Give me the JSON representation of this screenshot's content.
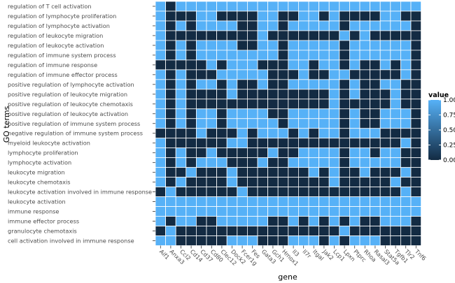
{
  "chart_data": {
    "type": "heatmap",
    "xlabel": "gene",
    "ylabel": "GO terms",
    "legend_title": "value",
    "legend_ticks": [
      "1.00",
      "0.75",
      "0.50",
      "0.25",
      "0.00"
    ],
    "colors": {
      "low": "#132B43",
      "high": "#56B1F7"
    },
    "value_range": [
      0,
      1
    ],
    "genes": [
      "Aif1",
      "Anxa3",
      "Ccl2",
      "Cd14",
      "Cd37",
      "Cd80",
      "Clec12",
      "Dock2",
      "Fcer1g",
      "Fes",
      "Gata3",
      "Gch1",
      "Hmox1",
      "Il3",
      "Il7r",
      "Itgal",
      "Jak2",
      "Lcp1",
      "Lpxn",
      "Ptprc",
      "Rhoa",
      "Rasal3",
      "Stat5a",
      "Tgfb1",
      "Tlr2",
      "Tnf6"
    ],
    "terms": [
      "regulation of T cell activation",
      "regulation of lymphocyte proliferation",
      "regulation of lymphocyte activation",
      "regulation of leukocyte migration",
      "regulation of leukocyte activation",
      "regulation of immune system process",
      "regulation of immune response",
      "regulation of immune effector process",
      "positive regulation of lymphocyte activation",
      "positive regulation of leukocyte migration",
      "positive regulation of leukocyte chemotaxis",
      "positive regulation of leukocyte activation",
      "positive regulation of immune system process",
      "negative regulation of immune system process",
      "myeloid leukocyte activation",
      "lymphocyte proliferation",
      "lymphocyte activation",
      "leukocyte migration",
      "leukocyte chemotaxis",
      "leukocyte activation involved in immune response",
      "leukocyte activation",
      "immune response",
      "immune effector process",
      "granulocyte chemotaxis",
      "cell activation involved in immune response"
    ],
    "values": [
      [
        1,
        0,
        1,
        1,
        1,
        1,
        1,
        1,
        1,
        1,
        1,
        1,
        1,
        1,
        1,
        1,
        1,
        1,
        1,
        1,
        1,
        1,
        1,
        1,
        1,
        1
      ],
      [
        1,
        0,
        0,
        0,
        1,
        1,
        0,
        0,
        0,
        0,
        1,
        1,
        0,
        0,
        1,
        1,
        0,
        1,
        0,
        0,
        0,
        0,
        1,
        1,
        0,
        0
      ],
      [
        1,
        0,
        1,
        0,
        1,
        1,
        1,
        1,
        0,
        0,
        1,
        1,
        0,
        1,
        1,
        1,
        1,
        1,
        0,
        1,
        1,
        1,
        1,
        1,
        1,
        0
      ],
      [
        1,
        0,
        0,
        0,
        0,
        0,
        0,
        0,
        0,
        0,
        1,
        0,
        0,
        0,
        0,
        0,
        0,
        0,
        1,
        0,
        1,
        0,
        0,
        0,
        0,
        0
      ],
      [
        1,
        0,
        1,
        0,
        1,
        1,
        1,
        1,
        0,
        0,
        1,
        1,
        0,
        1,
        1,
        1,
        1,
        1,
        0,
        1,
        1,
        1,
        1,
        1,
        1,
        0
      ],
      [
        1,
        0,
        1,
        0,
        1,
        1,
        1,
        1,
        1,
        1,
        1,
        1,
        0,
        1,
        1,
        1,
        1,
        1,
        0,
        1,
        1,
        1,
        1,
        1,
        1,
        0
      ],
      [
        0,
        0,
        0,
        0,
        0,
        1,
        0,
        1,
        1,
        1,
        0,
        0,
        0,
        1,
        1,
        0,
        1,
        1,
        0,
        1,
        0,
        0,
        1,
        0,
        1,
        0
      ],
      [
        1,
        0,
        1,
        0,
        0,
        0,
        1,
        1,
        1,
        1,
        1,
        0,
        0,
        0,
        1,
        0,
        0,
        1,
        1,
        0,
        0,
        0,
        0,
        0,
        1,
        0
      ],
      [
        1,
        0,
        1,
        0,
        1,
        1,
        0,
        1,
        0,
        0,
        1,
        0,
        0,
        1,
        1,
        1,
        1,
        1,
        0,
        1,
        0,
        0,
        1,
        1,
        0,
        0
      ],
      [
        1,
        0,
        1,
        0,
        0,
        0,
        0,
        1,
        0,
        0,
        0,
        0,
        0,
        0,
        0,
        0,
        0,
        1,
        0,
        1,
        0,
        0,
        0,
        1,
        0,
        0
      ],
      [
        1,
        0,
        1,
        0,
        0,
        0,
        0,
        0,
        0,
        0,
        0,
        0,
        0,
        0,
        0,
        0,
        0,
        1,
        0,
        0,
        0,
        0,
        0,
        1,
        0,
        0
      ],
      [
        1,
        0,
        1,
        0,
        1,
        1,
        0,
        1,
        1,
        1,
        1,
        0,
        0,
        1,
        1,
        1,
        1,
        1,
        0,
        1,
        0,
        0,
        1,
        1,
        1,
        0
      ],
      [
        1,
        0,
        1,
        0,
        1,
        1,
        0,
        1,
        1,
        1,
        1,
        1,
        0,
        1,
        1,
        1,
        1,
        1,
        0,
        1,
        0,
        0,
        1,
        1,
        1,
        0
      ],
      [
        0,
        0,
        0,
        0,
        1,
        0,
        0,
        0,
        1,
        0,
        1,
        1,
        1,
        0,
        1,
        0,
        1,
        1,
        0,
        1,
        1,
        1,
        0,
        0,
        0,
        0
      ],
      [
        1,
        0,
        0,
        0,
        0,
        0,
        0,
        1,
        1,
        0,
        0,
        0,
        0,
        0,
        0,
        0,
        0,
        0,
        0,
        0,
        0,
        0,
        0,
        0,
        1,
        0
      ],
      [
        1,
        0,
        1,
        0,
        0,
        1,
        0,
        0,
        0,
        0,
        0,
        1,
        0,
        0,
        1,
        1,
        1,
        1,
        0,
        1,
        1,
        0,
        1,
        1,
        0,
        0
      ],
      [
        1,
        0,
        1,
        0,
        1,
        1,
        1,
        0,
        0,
        0,
        1,
        0,
        0,
        1,
        1,
        1,
        1,
        1,
        0,
        1,
        1,
        1,
        1,
        1,
        0,
        0
      ],
      [
        1,
        0,
        0,
        1,
        0,
        0,
        0,
        1,
        0,
        0,
        0,
        0,
        0,
        0,
        0,
        1,
        0,
        1,
        0,
        0,
        1,
        0,
        0,
        0,
        1,
        0
      ],
      [
        1,
        0,
        1,
        0,
        0,
        0,
        0,
        1,
        0,
        0,
        0,
        0,
        0,
        0,
        0,
        0,
        0,
        1,
        0,
        0,
        0,
        0,
        0,
        1,
        0,
        0
      ],
      [
        0,
        1,
        0,
        0,
        0,
        0,
        0,
        0,
        1,
        0,
        0,
        0,
        0,
        0,
        0,
        0,
        0,
        0,
        0,
        0,
        0,
        0,
        0,
        0,
        1,
        0
      ],
      [
        1,
        1,
        1,
        1,
        1,
        1,
        1,
        1,
        1,
        1,
        1,
        1,
        1,
        1,
        1,
        1,
        1,
        1,
        1,
        1,
        1,
        1,
        1,
        1,
        1,
        1
      ],
      [
        1,
        1,
        1,
        1,
        1,
        1,
        1,
        1,
        1,
        1,
        1,
        1,
        1,
        1,
        1,
        1,
        1,
        1,
        1,
        1,
        1,
        1,
        1,
        1,
        1,
        1
      ],
      [
        1,
        0,
        1,
        1,
        0,
        0,
        1,
        1,
        1,
        1,
        1,
        0,
        0,
        1,
        0,
        1,
        0,
        1,
        0,
        1,
        0,
        0,
        1,
        1,
        1,
        0
      ],
      [
        0,
        1,
        0,
        0,
        0,
        0,
        0,
        0,
        0,
        0,
        0,
        0,
        0,
        0,
        0,
        0,
        0,
        0,
        1,
        0,
        0,
        0,
        0,
        0,
        0,
        0
      ],
      [
        1,
        1,
        0,
        0,
        0,
        0,
        0,
        1,
        1,
        1,
        0,
        0,
        0,
        1,
        1,
        1,
        0,
        1,
        0,
        1,
        1,
        1,
        0,
        0,
        0,
        0
      ]
    ]
  }
}
